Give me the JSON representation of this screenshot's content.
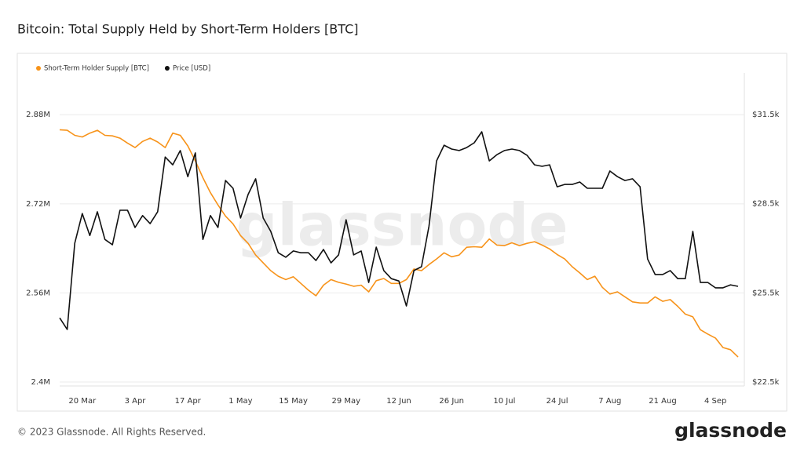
{
  "chart_data": {
    "type": "line",
    "title": "Bitcoin: Total Supply Held by Short-Term Holders [BTC]",
    "watermark": "glassnode",
    "x": [
      "14 Mar",
      "16 Mar",
      "18 Mar",
      "20 Mar",
      "22 Mar",
      "24 Mar",
      "26 Mar",
      "28 Mar",
      "30 Mar",
      "1 Apr",
      "3 Apr",
      "5 Apr",
      "7 Apr",
      "9 Apr",
      "11 Apr",
      "13 Apr",
      "15 Apr",
      "17 Apr",
      "19 Apr",
      "21 Apr",
      "23 Apr",
      "25 Apr",
      "27 Apr",
      "29 Apr",
      "1 May",
      "3 May",
      "5 May",
      "7 May",
      "9 May",
      "11 May",
      "13 May",
      "15 May",
      "17 May",
      "19 May",
      "21 May",
      "23 May",
      "25 May",
      "27 May",
      "29 May",
      "31 May",
      "2 Jun",
      "4 Jun",
      "6 Jun",
      "8 Jun",
      "10 Jun",
      "12 Jun",
      "14 Jun",
      "16 Jun",
      "18 Jun",
      "20 Jun",
      "22 Jun",
      "24 Jun",
      "26 Jun",
      "28 Jun",
      "30 Jun",
      "2 Jul",
      "4 Jul",
      "6 Jul",
      "8 Jul",
      "10 Jul",
      "12 Jul",
      "14 Jul",
      "16 Jul",
      "18 Jul",
      "20 Jul",
      "22 Jul",
      "24 Jul",
      "26 Jul",
      "28 Jul",
      "30 Jul",
      "1 Aug",
      "3 Aug",
      "5 Aug",
      "7 Aug",
      "9 Aug",
      "11 Aug",
      "13 Aug",
      "15 Aug",
      "17 Aug",
      "19 Aug",
      "21 Aug",
      "23 Aug",
      "25 Aug",
      "27 Aug",
      "29 Aug",
      "31 Aug",
      "2 Sep",
      "4 Sep",
      "6 Sep",
      "8 Sep",
      "10 Sep"
    ],
    "xticks": [
      "20 Mar",
      "3 Apr",
      "17 Apr",
      "1 May",
      "15 May",
      "29 May",
      "12 Jun",
      "26 Jun",
      "10 Jul",
      "24 Jul",
      "7 Aug",
      "21 Aug",
      "4 Sep"
    ],
    "series": [
      {
        "name": "Short-Term Holder Supply [BTC]",
        "color": "#f7931a",
        "values": [
          2853000,
          2852000,
          2843000,
          2840000,
          2847000,
          2852000,
          2843000,
          2842000,
          2838000,
          2829000,
          2821000,
          2832000,
          2838000,
          2831000,
          2821000,
          2847000,
          2843000,
          2824000,
          2797000,
          2767000,
          2740000,
          2718000,
          2698000,
          2684000,
          2663000,
          2649000,
          2628000,
          2614000,
          2600000,
          2590000,
          2584000,
          2589000,
          2577000,
          2565000,
          2555000,
          2574000,
          2584000,
          2579000,
          2576000,
          2572000,
          2574000,
          2562000,
          2582000,
          2586000,
          2577000,
          2577000,
          2584000,
          2603000,
          2600000,
          2611000,
          2621000,
          2632000,
          2625000,
          2628000,
          2642000,
          2643000,
          2642000,
          2657000,
          2646000,
          2645000,
          2650000,
          2645000,
          2649000,
          2652000,
          2646000,
          2639000,
          2629000,
          2621000,
          2607000,
          2596000,
          2584000,
          2590000,
          2570000,
          2558000,
          2562000,
          2553000,
          2544000,
          2542000,
          2542000,
          2553000,
          2545000,
          2548000,
          2536000,
          2522000,
          2517000,
          2494000,
          2486000,
          2479000,
          2462000,
          2458000,
          2445000
        ]
      },
      {
        "name": "Price [USD]",
        "color": "#111111",
        "axis": "y2",
        "values": [
          24660,
          24270,
          27170,
          28170,
          27430,
          28230,
          27300,
          27120,
          28280,
          28280,
          27700,
          28100,
          27830,
          28230,
          30070,
          29810,
          30290,
          29410,
          30210,
          27300,
          28100,
          27700,
          29280,
          29020,
          28020,
          28810,
          29340,
          28020,
          27570,
          26850,
          26700,
          26910,
          26850,
          26850,
          26590,
          26960,
          26510,
          26780,
          27960,
          26780,
          26910,
          25850,
          27040,
          26250,
          25980,
          25900,
          25060,
          26250,
          26380,
          27750,
          29940,
          30470,
          30340,
          30290,
          30390,
          30550,
          30920,
          29940,
          30150,
          30290,
          30340,
          30290,
          30130,
          29810,
          29760,
          29810,
          29070,
          29150,
          29150,
          29230,
          29020,
          29020,
          29020,
          29600,
          29410,
          29280,
          29340,
          29070,
          26640,
          26120,
          26120,
          26250,
          25980,
          25980,
          27570,
          25850,
          25850,
          25670,
          25670,
          25770,
          25720
        ]
      }
    ],
    "ylim": [
      2400000,
      2955000
    ],
    "yticks": [
      {
        "value": 2400000,
        "label": "2.4M"
      },
      {
        "value": 2560000,
        "label": "2.56M"
      },
      {
        "value": 2720000,
        "label": "2.72M"
      },
      {
        "value": 2880000,
        "label": "2.88M"
      }
    ],
    "y2lim": [
      22500,
      32900
    ],
    "y2ticks": [
      {
        "value": 22500,
        "label": "$22.5k"
      },
      {
        "value": 25500,
        "label": "$25.5k"
      },
      {
        "value": 28500,
        "label": "$28.5k"
      },
      {
        "value": 31500,
        "label": "$31.5k"
      }
    ],
    "grid": true,
    "legend": "top-left"
  },
  "footer": {
    "copyright": "© 2023 Glassnode. All Rights Reserved.",
    "logo": "glassnode"
  }
}
